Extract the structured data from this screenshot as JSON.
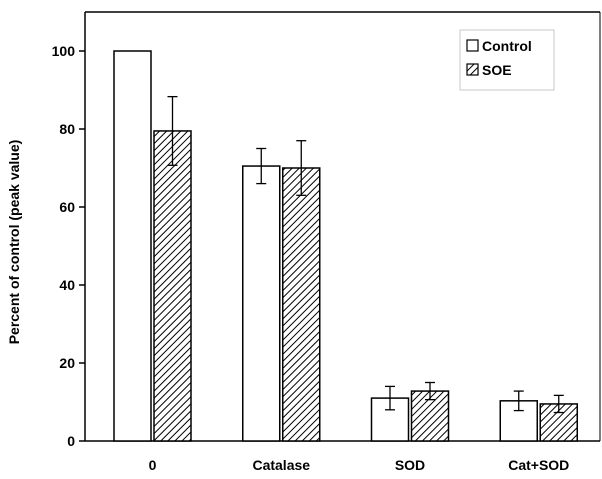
{
  "chart_data": {
    "type": "bar",
    "title": "",
    "xlabel": "",
    "ylabel": "Percent of control (peak value)",
    "categories": [
      "0",
      "Catalase",
      "SOD",
      "Cat+SOD"
    ],
    "series": [
      {
        "name": "Control",
        "values": [
          100,
          70.5,
          11.0,
          10.3
        ],
        "errors": [
          0,
          4.5,
          3.0,
          2.5
        ],
        "pattern": "open"
      },
      {
        "name": "SOE",
        "values": [
          79.5,
          70.0,
          12.8,
          9.5
        ],
        "errors": [
          8.8,
          7.0,
          2.2,
          2.2
        ],
        "pattern": "hatched"
      }
    ],
    "ylim": [
      0,
      110
    ],
    "yticks": [
      0,
      20,
      40,
      60,
      80,
      100
    ],
    "grid": false,
    "legend_position": "top-right",
    "colors": {
      "bar_edge": "#000000",
      "open_fill": "#ffffff",
      "hatch": "#000000"
    }
  }
}
